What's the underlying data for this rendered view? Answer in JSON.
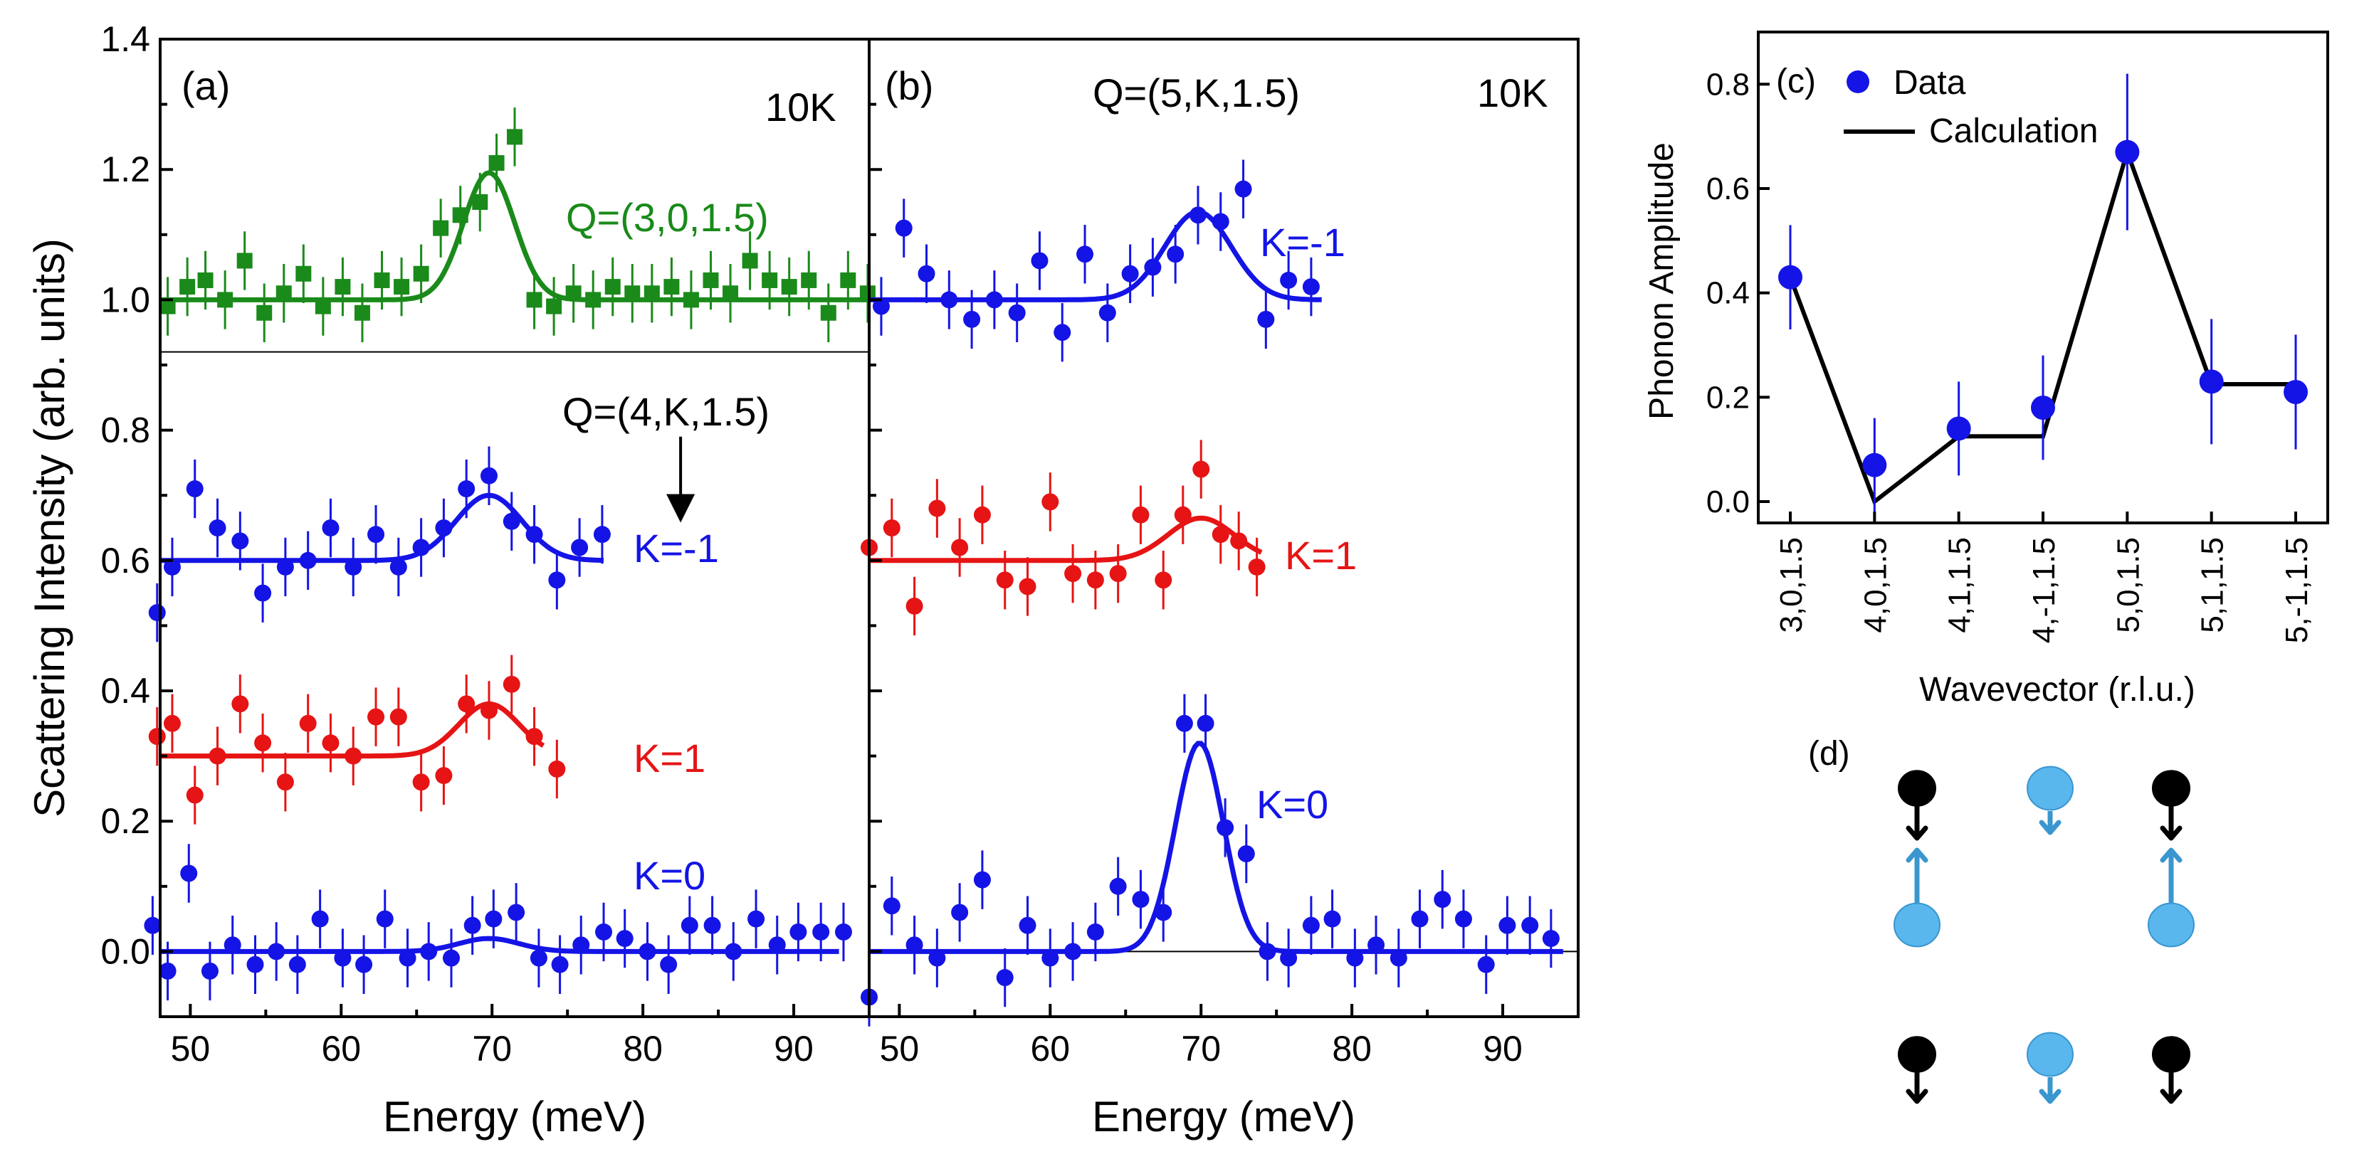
{
  "colors": {
    "green": "#1a8a1a",
    "blue": "#1414e6",
    "red": "#e61414",
    "black": "#000000",
    "lightblue": "#59b7ee",
    "arrowblue": "#3a96cf"
  },
  "panel_a": {
    "label": "(a)",
    "temp": "10K",
    "q_top": "Q=(3,0,1.5)",
    "q_mid": "Q=(4,K,1.5)",
    "k_m1": "K=-1",
    "k_1": "K=1",
    "k_0": "K=0"
  },
  "panel_b": {
    "label": "(b)",
    "q": "Q=(5,K,1.5)",
    "temp": "10K",
    "k_m1": "K=-1",
    "k_1": "K=1",
    "k_0": "K=0"
  },
  "panel_c": {
    "label": "(c)",
    "legend_data": "Data",
    "legend_calc": "Calculation"
  },
  "panel_d": {
    "label": "(d)"
  },
  "chart_data": [
    {
      "id": "a",
      "type": "scatter",
      "xlabel": "Energy (meV)",
      "ylabel": "Scattering Intensity (arb. units)",
      "xlim": [
        48,
        95
      ],
      "ylim": [
        -0.1,
        1.4
      ],
      "xticks": [
        50,
        60,
        70,
        80,
        90
      ],
      "yticks": [
        0.0,
        0.2,
        0.4,
        0.6,
        0.8,
        1.0,
        1.2,
        1.4
      ],
      "ytick_labels": [
        "0.0",
        "0.2",
        "0.4",
        "0.6",
        "0.8",
        "1.0",
        "1.2",
        "1.4"
      ],
      "xtick_labels": [
        "50",
        "60",
        "70",
        "80",
        "90"
      ],
      "hline": 0.92,
      "arrow": {
        "x": 82.5,
        "y_from": 0.79,
        "y_to": 0.68
      },
      "series": [
        {
          "name": "Q=(3,0,1.5)",
          "color": "green",
          "marker": "square",
          "base": 1.0,
          "amp": 0.195,
          "center": 69.8,
          "sigma": 1.7,
          "fit_range": [
            48,
            95
          ],
          "x": [
            48.5,
            49.8,
            51.0,
            52.3,
            53.6,
            54.9,
            56.2,
            57.5,
            58.8,
            60.1,
            61.4,
            62.7,
            64.0,
            65.3,
            66.6,
            67.9,
            69.2,
            70.3,
            71.5,
            72.8,
            74.1,
            75.4,
            76.7,
            78.0,
            79.3,
            80.6,
            81.9,
            83.2,
            84.5,
            85.8,
            87.1,
            88.4,
            89.7,
            91.0,
            92.3,
            93.6,
            94.9
          ],
          "y": [
            0.99,
            1.02,
            1.03,
            1.0,
            1.06,
            0.98,
            1.01,
            1.04,
            0.99,
            1.02,
            0.98,
            1.03,
            1.02,
            1.04,
            1.11,
            1.13,
            1.15,
            1.21,
            1.25,
            1.0,
            0.99,
            1.01,
            1.0,
            1.02,
            1.01,
            1.01,
            1.02,
            1.0,
            1.03,
            1.01,
            1.06,
            1.03,
            1.02,
            1.03,
            0.98,
            1.03,
            1.01
          ]
        },
        {
          "name": "K=-1",
          "color": "blue",
          "marker": "circle",
          "base": 0.6,
          "amp": 0.1,
          "center": 69.8,
          "sigma": 2.2,
          "fit_range": [
            48,
            77.5
          ],
          "x": [
            47.8,
            48.8,
            50.3,
            51.8,
            53.3,
            54.8,
            56.3,
            57.8,
            59.3,
            60.8,
            62.3,
            63.8,
            65.3,
            66.8,
            68.3,
            69.8,
            71.3,
            72.8,
            74.3,
            75.8,
            77.3
          ],
          "y": [
            0.52,
            0.59,
            0.71,
            0.65,
            0.63,
            0.55,
            0.59,
            0.6,
            0.65,
            0.59,
            0.64,
            0.59,
            0.62,
            0.65,
            0.71,
            0.73,
            0.66,
            0.64,
            0.57,
            0.62,
            0.64
          ]
        },
        {
          "name": "K=1",
          "color": "red",
          "marker": "circle",
          "base": 0.3,
          "amp": 0.08,
          "center": 69.8,
          "sigma": 2.0,
          "fit_range": [
            48,
            73.5
          ],
          "x": [
            47.8,
            48.8,
            50.3,
            51.8,
            53.3,
            54.8,
            56.3,
            57.8,
            59.3,
            60.8,
            62.3,
            63.8,
            65.3,
            66.8,
            68.3,
            69.8,
            71.3,
            72.8,
            74.3
          ],
          "y": [
            0.33,
            0.35,
            0.24,
            0.3,
            0.38,
            0.32,
            0.26,
            0.35,
            0.32,
            0.3,
            0.36,
            0.36,
            0.26,
            0.27,
            0.38,
            0.37,
            0.41,
            0.33,
            0.28
          ]
        },
        {
          "name": "K=0",
          "color": "blue",
          "marker": "circle",
          "base": 0.0,
          "amp": 0.02,
          "center": 69.8,
          "sigma": 2.0,
          "fit_range": [
            48,
            93
          ],
          "x": [
            47.5,
            48.5,
            49.9,
            51.3,
            52.8,
            54.3,
            55.7,
            57.1,
            58.6,
            60.1,
            61.5,
            62.9,
            64.4,
            65.8,
            67.3,
            68.7,
            70.1,
            71.6,
            73.1,
            74.5,
            75.9,
            77.4,
            78.8,
            80.3,
            81.7,
            83.1,
            84.6,
            86.0,
            87.5,
            88.9,
            90.3,
            91.8,
            93.3
          ],
          "y": [
            0.04,
            -0.03,
            0.12,
            -0.03,
            0.01,
            -0.02,
            0.0,
            -0.02,
            0.05,
            -0.01,
            -0.02,
            0.05,
            -0.01,
            0.0,
            -0.01,
            0.04,
            0.05,
            0.06,
            -0.01,
            -0.02,
            0.01,
            0.03,
            0.02,
            0.0,
            -0.02,
            0.04,
            0.04,
            0.0,
            0.05,
            0.01,
            0.03,
            0.03,
            0.03
          ]
        }
      ]
    },
    {
      "id": "b",
      "type": "scatter",
      "xlabel": "Energy (meV)",
      "ylabel": "",
      "xlim": [
        48,
        95
      ],
      "ylim": [
        -0.1,
        1.4
      ],
      "xticks": [
        50,
        60,
        70,
        80,
        90
      ],
      "xtick_labels": [
        "50",
        "60",
        "70",
        "80",
        "90"
      ],
      "hline": 0.0,
      "series": [
        {
          "name": "K=-1",
          "color": "blue",
          "marker": "circle",
          "base": 1.0,
          "amp": 0.135,
          "center": 69.8,
          "sigma": 2.2,
          "fit_range": [
            48,
            78
          ],
          "x": [
            48.8,
            50.3,
            51.8,
            53.3,
            54.8,
            56.3,
            57.8,
            59.3,
            60.8,
            62.3,
            63.8,
            65.3,
            66.8,
            68.3,
            69.8,
            71.3,
            72.8,
            74.3,
            75.8,
            77.3
          ],
          "y": [
            0.99,
            1.11,
            1.04,
            1.0,
            0.97,
            1.0,
            0.98,
            1.06,
            0.95,
            1.07,
            0.98,
            1.04,
            1.05,
            1.07,
            1.13,
            1.12,
            1.17,
            0.97,
            1.03,
            1.02
          ],
          "y2": [
            0.99
          ]
        },
        {
          "name": "K=1",
          "color": "red",
          "marker": "circle",
          "base": 0.6,
          "amp": 0.065,
          "center": 70.0,
          "sigma": 2.2,
          "fit_range": [
            48,
            74
          ]
        },
        {
          "name": "K=0",
          "color": "blue",
          "marker": "circle",
          "base": 0.0,
          "amp": 0.32,
          "center": 69.9,
          "sigma": 1.6,
          "fit_range": [
            48,
            94
          ],
          "x": [
            48.0,
            49.5,
            51.0,
            52.5,
            54.0,
            55.5,
            57.0,
            58.5,
            60.0,
            61.5,
            63.0,
            64.5,
            66.0,
            67.5,
            68.9,
            70.3,
            71.6,
            73.0,
            74.4,
            75.8,
            77.3,
            78.7,
            80.2,
            81.6,
            83.1,
            84.5,
            86.0,
            87.4,
            88.9,
            90.3,
            91.8,
            93.2
          ],
          "y": [
            -0.07,
            0.07,
            0.01,
            -0.01,
            0.06,
            0.11,
            -0.04,
            0.04,
            -0.01,
            0.0,
            0.03,
            0.1,
            0.08,
            0.06,
            0.35,
            0.35,
            0.19,
            0.15,
            0.0,
            -0.01,
            0.04,
            0.05,
            -0.01,
            0.01,
            -0.01,
            0.05,
            0.08,
            0.05,
            -0.02,
            0.04,
            0.04,
            0.02
          ]
        }
      ]
    },
    {
      "id": "c",
      "type": "scatter",
      "xlabel": "Wavevector (r.l.u.)",
      "ylabel": "Phonon Amplitude",
      "ylim": [
        0.0,
        0.9
      ],
      "yticks": [
        0.0,
        0.2,
        0.4,
        0.6,
        0.8
      ],
      "ytick_labels": [
        "0.0",
        "0.2",
        "0.4",
        "0.6",
        "0.8"
      ],
      "categories": [
        "3,0,1.5",
        "4,0,1.5",
        "4,1,1.5",
        "4,-1,1.5",
        "5,0,1.5",
        "5,1,1.5",
        "5,-1,1.5"
      ],
      "series": [
        {
          "name": "Data",
          "values": [
            0.43,
            0.07,
            0.14,
            0.18,
            0.67,
            0.23,
            0.21
          ],
          "errors": [
            0.1,
            0.09,
            0.09,
            0.1,
            0.15,
            0.12,
            0.11
          ]
        },
        {
          "name": "Calculation",
          "points": [
            [
              0,
              0.43
            ],
            [
              1,
              0.0
            ],
            [
              2,
              0.125
            ],
            [
              3,
              0.125
            ],
            [
              4,
              0.67
            ],
            [
              5,
              0.225
            ],
            [
              6,
              0.225
            ]
          ]
        }
      ]
    }
  ]
}
